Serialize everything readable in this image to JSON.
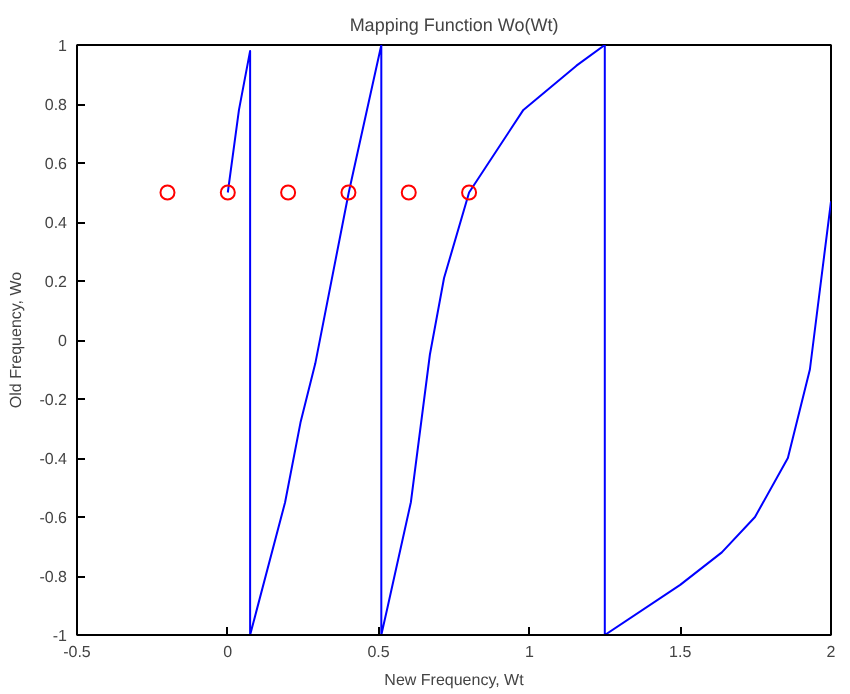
{
  "chart_data": {
    "type": "line",
    "title": "Mapping Function Wo(Wt)",
    "xlabel": "New Frequency, Wt",
    "ylabel": "Old Frequency, Wo",
    "xlim": [
      -0.5,
      2
    ],
    "ylim": [
      -1,
      1
    ],
    "xticks": [
      -0.5,
      0,
      0.5,
      1,
      1.5,
      2
    ],
    "yticks": [
      -1,
      -0.8,
      -0.6,
      -0.4,
      -0.2,
      0,
      0.2,
      0.4,
      0.6,
      0.8,
      1
    ],
    "grid": false,
    "series": [
      {
        "color": "#0000ff",
        "line_style": "solid",
        "marker": "none",
        "x": [
          0,
          0.037,
          0.074,
          0.074,
          0.19,
          0.241,
          0.29,
          0.401,
          0.509,
          0.509,
          0.531,
          0.607,
          0.67,
          0.717,
          0.8,
          0.98,
          1.156,
          1.25,
          1.25,
          1.5,
          1.638,
          1.748,
          1.857,
          1.93,
          2.0
        ],
        "values": [
          0.5,
          0.78,
          0.98,
          -1,
          -0.55,
          -0.28,
          -0.08,
          0.5,
          1,
          -1,
          -0.9,
          -0.55,
          -0.05,
          0.21,
          0.5,
          0.78,
          0.93,
          1,
          -1,
          -0.83,
          -0.72,
          -0.6,
          -0.4,
          -0.1,
          0.47
        ]
      },
      {
        "type": "scatter",
        "color": "#ff0000",
        "marker": "circle",
        "x": [
          -0.2,
          0,
          0.2,
          0.4,
          0.6,
          0.8
        ],
        "values": [
          0.5,
          0.5,
          0.5,
          0.5,
          0.5,
          0.5
        ]
      }
    ]
  }
}
